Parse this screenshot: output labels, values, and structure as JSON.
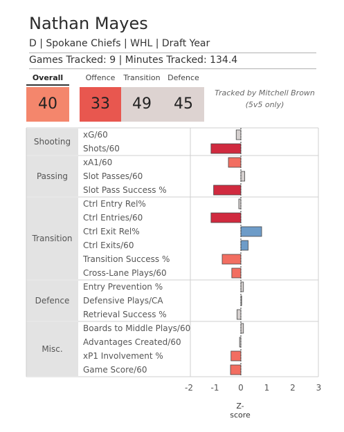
{
  "player": {
    "name": "Nathan Mayes",
    "info": "D | Spokane Chiefs | WHL | Draft Year",
    "tracked": "Games Tracked: 9 | Minutes Tracked: 134.4"
  },
  "summary": {
    "overall_label": "Overall",
    "overall_value": "40",
    "offence_label": "Offence",
    "offence_value": "33",
    "transition_label": "Transition",
    "transition_value": "49",
    "defence_label": "Defence",
    "defence_value": "45",
    "credit_line1": "Tracked by Mitchell Brown",
    "credit_line2": "(5v5 only)"
  },
  "colors": {
    "overall_box": "#f4866c",
    "offence_box": "#e8574f",
    "neutral_box": "#ddd3d1",
    "strong_neg": "#d02a3f",
    "mild_neg": "#f26e61",
    "neutral": "#d5d0cf",
    "mild_pos": "#c4c6d5",
    "pos": "#6e9cc8"
  },
  "chart_data": {
    "type": "bar",
    "orientation": "horizontal",
    "xlabel": "Z-score",
    "xlim": [
      -2.6,
      3.0
    ],
    "xticks": [
      -2,
      -1,
      0,
      1,
      2,
      3
    ],
    "groups": [
      {
        "name": "Shooting",
        "metrics": [
          {
            "label": "xG/60",
            "value": -0.18
          },
          {
            "label": "Shots/60",
            "value": -1.15
          }
        ]
      },
      {
        "name": "Passing",
        "metrics": [
          {
            "label": "xA1/60",
            "value": -0.48
          },
          {
            "label": "Slot Passes/60",
            "value": 0.15
          },
          {
            "label": "Slot Pass Success %",
            "value": -1.05
          }
        ]
      },
      {
        "name": "Transition",
        "metrics": [
          {
            "label": "Ctrl Entry Rel%",
            "value": -0.08
          },
          {
            "label": "Ctrl Entries/60",
            "value": -1.15
          },
          {
            "label": "Ctrl Exit Rel%",
            "value": 0.8
          },
          {
            "label": "Ctrl Exits/60",
            "value": 0.28
          },
          {
            "label": "Transition Success %",
            "value": -0.72
          },
          {
            "label": "Cross-Lane Plays/60",
            "value": -0.35
          }
        ]
      },
      {
        "name": "Defence",
        "metrics": [
          {
            "label": "Entry Prevention %",
            "value": 0.1
          },
          {
            "label": "Defensive Plays/CA",
            "value": 0.03
          },
          {
            "label": "Retrieval Success %",
            "value": -0.15
          }
        ]
      },
      {
        "name": "Misc.",
        "metrics": [
          {
            "label": "Boards to Middle Plays/60",
            "value": 0.1
          },
          {
            "label": "Advantages Created/60",
            "value": -0.05
          },
          {
            "label": "xP1 Involvement %",
            "value": -0.38
          },
          {
            "label": "Game Score/60",
            "value": -0.4
          }
        ]
      }
    ]
  }
}
